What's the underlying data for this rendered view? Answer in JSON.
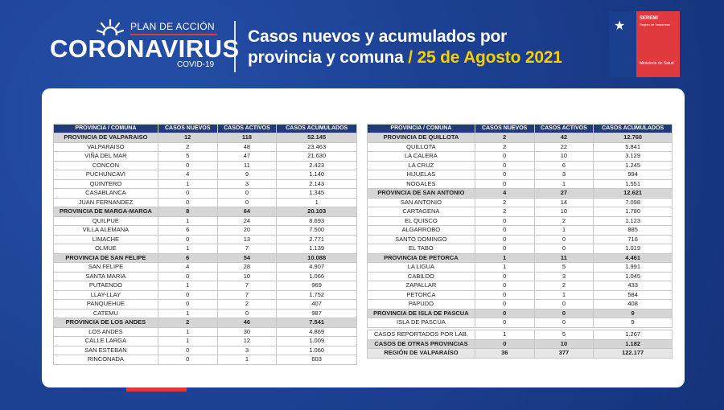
{
  "logo": {
    "plan": "PLAN DE ACCIÓN",
    "main": "CORONAVIRUS",
    "sub": "COVID-19"
  },
  "headline": {
    "line1": "Casos nuevos y acumulados por",
    "line2": "provincia y comuna",
    "sep": " / ",
    "date": "25 de Agosto 2021"
  },
  "seremi": {
    "title": "SEREMI",
    "subtitle": "Región de Valparaíso",
    "ministry": "Ministerio de Salud"
  },
  "columns": [
    "PROVINCIA / COMUNA",
    "CASOS NUEVOS",
    "CASOS ACTIVOS",
    "CASOS ACUMULADOS"
  ],
  "left_rows": [
    {
      "name": "PROVINCIA DE VALPARAISO",
      "nuevos": "12",
      "activos": "118",
      "acum": "52.145",
      "prov": true
    },
    {
      "name": "VALPARAISO",
      "nuevos": "2",
      "activos": "48",
      "acum": "23.463"
    },
    {
      "name": "VIÑA DEL MAR",
      "nuevos": "5",
      "activos": "47",
      "acum": "21.630"
    },
    {
      "name": "CONCON",
      "nuevos": "0",
      "activos": "11",
      "acum": "2.423"
    },
    {
      "name": "PUCHUNCAVI",
      "nuevos": "4",
      "activos": "9",
      "acum": "1.140"
    },
    {
      "name": "QUINTERO",
      "nuevos": "1",
      "activos": "3",
      "acum": "2.143"
    },
    {
      "name": "CASABLANCA",
      "nuevos": "0",
      "activos": "0",
      "acum": "1.345"
    },
    {
      "name": "JUAN FERNANDEZ",
      "nuevos": "0",
      "activos": "0",
      "acum": "1"
    },
    {
      "name": "PROVINCIA DE MARGA-MARGA",
      "nuevos": "8",
      "activos": "64",
      "acum": "20.103",
      "prov": true
    },
    {
      "name": "QUILPUE",
      "nuevos": "1",
      "activos": "24",
      "acum": "8.693"
    },
    {
      "name": "VILLA ALEMANA",
      "nuevos": "6",
      "activos": "20",
      "acum": "7.500"
    },
    {
      "name": "LIMACHE",
      "nuevos": "0",
      "activos": "13",
      "acum": "2.771"
    },
    {
      "name": "OLMUE",
      "nuevos": "1",
      "activos": "7",
      "acum": "1.139"
    },
    {
      "name": "PROVINCIA DE SAN FELIPE",
      "nuevos": "6",
      "activos": "54",
      "acum": "10.088",
      "prov": true
    },
    {
      "name": "SAN FELIPE",
      "nuevos": "4",
      "activos": "28",
      "acum": "4.907"
    },
    {
      "name": "SANTA MARIA",
      "nuevos": "0",
      "activos": "10",
      "acum": "1.066"
    },
    {
      "name": "PUTAENDO",
      "nuevos": "1",
      "activos": "7",
      "acum": "969"
    },
    {
      "name": "LLAY-LLAY",
      "nuevos": "0",
      "activos": "7",
      "acum": "1.752"
    },
    {
      "name": "PANQUEHUE",
      "nuevos": "0",
      "activos": "2",
      "acum": "407"
    },
    {
      "name": "CATEMU",
      "nuevos": "1",
      "activos": "0",
      "acum": "987"
    },
    {
      "name": "PROVINCIA DE LOS ANDES",
      "nuevos": "2",
      "activos": "46",
      "acum": "7.541",
      "prov": true
    },
    {
      "name": "LOS ANDES",
      "nuevos": "1",
      "activos": "30",
      "acum": "4.869"
    },
    {
      "name": "CALLE LARGA",
      "nuevos": "1",
      "activos": "12",
      "acum": "1.009"
    },
    {
      "name": "SAN ESTEBAN",
      "nuevos": "0",
      "activos": "3",
      "acum": "1.060"
    },
    {
      "name": "RINCONADA",
      "nuevos": "0",
      "activos": "1",
      "acum": "603"
    }
  ],
  "right_rows": [
    {
      "name": "PROVINCIA DE QUILLOTA",
      "nuevos": "2",
      "activos": "42",
      "acum": "12.760",
      "prov": true
    },
    {
      "name": "QUILLOTA",
      "nuevos": "2",
      "activos": "22",
      "acum": "5.841"
    },
    {
      "name": "LA CALERA",
      "nuevos": "0",
      "activos": "10",
      "acum": "3.129"
    },
    {
      "name": "LA CRUZ",
      "nuevos": "0",
      "activos": "6",
      "acum": "1.245"
    },
    {
      "name": "HIJUELAS",
      "nuevos": "0",
      "activos": "3",
      "acum": "994"
    },
    {
      "name": "NOGALES",
      "nuevos": "0",
      "activos": "1",
      "acum": "1.551"
    },
    {
      "name": "PROVINCIA DE SAN ANTONIO",
      "nuevos": "4",
      "activos": "27",
      "acum": "12.621",
      "prov": true
    },
    {
      "name": "SAN ANTONIO",
      "nuevos": "2",
      "activos": "14",
      "acum": "7.098"
    },
    {
      "name": "CARTAGENA",
      "nuevos": "2",
      "activos": "10",
      "acum": "1.780"
    },
    {
      "name": "EL QUISCO",
      "nuevos": "0",
      "activos": "2",
      "acum": "1.123"
    },
    {
      "name": "ALGARROBO",
      "nuevos": "0",
      "activos": "1",
      "acum": "885"
    },
    {
      "name": "SANTO DOMINGO",
      "nuevos": "0",
      "activos": "0",
      "acum": "716"
    },
    {
      "name": "EL TABO",
      "nuevos": "0",
      "activos": "0",
      "acum": "1.019"
    },
    {
      "name": "PROVINCIA DE PETORCA",
      "nuevos": "1",
      "activos": "11",
      "acum": "4.461",
      "prov": true
    },
    {
      "name": "LA LIGUA",
      "nuevos": "1",
      "activos": "5",
      "acum": "1.991"
    },
    {
      "name": "CABILDO",
      "nuevos": "0",
      "activos": "3",
      "acum": "1.045"
    },
    {
      "name": "ZAPALLAR",
      "nuevos": "0",
      "activos": "2",
      "acum": "433"
    },
    {
      "name": "PETORCA",
      "nuevos": "0",
      "activos": "1",
      "acum": "584"
    },
    {
      "name": "PAPUDO",
      "nuevos": "0",
      "activos": "0",
      "acum": "408"
    },
    {
      "name": "PROVINCIA DE ISLA DE PASCUA",
      "nuevos": "0",
      "activos": "0",
      "acum": "9",
      "prov": true
    },
    {
      "name": "ISLA DE PASCUA",
      "nuevos": "0",
      "activos": "0",
      "acum": "9"
    }
  ],
  "summary_rows": [
    {
      "name": "CASOS REPORTADOS POR LAB.",
      "nuevos": "1",
      "activos": "5",
      "acum": "1.267"
    },
    {
      "name": "CASOS DE OTRAS PROVINCIAS",
      "nuevos": "0",
      "activos": "10",
      "acum": "1.182",
      "prov": true
    },
    {
      "name": "REGIÓN DE VALPARAÍSO",
      "nuevos": "36",
      "activos": "377",
      "acum": "122.177",
      "region": true
    }
  ]
}
